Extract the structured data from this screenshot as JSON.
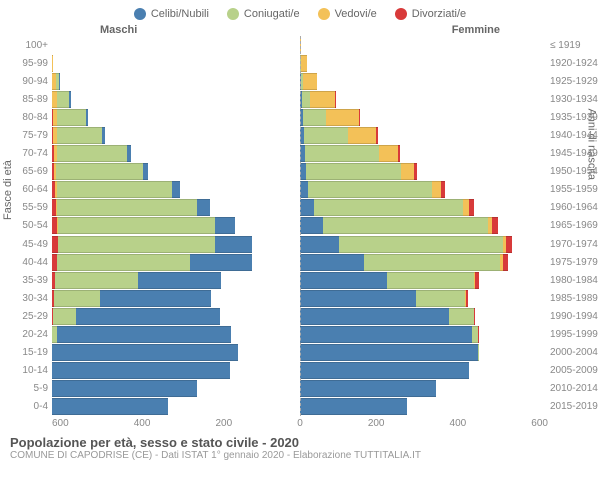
{
  "legend": [
    {
      "label": "Celibi/Nubili",
      "color": "#4a7fb0"
    },
    {
      "label": "Coniugati/e",
      "color": "#b8d18a"
    },
    {
      "label": "Vedovi/e",
      "color": "#f3c158"
    },
    {
      "label": "Divorziati/e",
      "color": "#d83a3a"
    }
  ],
  "header_left": "Maschi",
  "header_right": "Femmine",
  "y_label_left": "Fasce di età",
  "y_label_right": "Anni di nascita",
  "x_ticks": [
    "600",
    "400",
    "200",
    "0",
    "200",
    "400",
    "600"
  ],
  "x_max": 600,
  "footer_title": "Popolazione per età, sesso e stato civile - 2020",
  "footer_sub": "COMUNE DI CAPODRISE (CE) - Dati ISTAT 1° gennaio 2020 - Elaborazione TUTTITALIA.IT",
  "colors": {
    "celibi": "#4a7fb0",
    "coniugati": "#b8d18a",
    "vedovi": "#f3c158",
    "divorziati": "#d83a3a"
  },
  "rows": [
    {
      "age": "100+",
      "birth": "≤ 1919",
      "m": [
        0,
        0,
        0,
        0
      ],
      "f": [
        0,
        0,
        2,
        0
      ]
    },
    {
      "age": "95-99",
      "birth": "1920-1924",
      "m": [
        0,
        0,
        3,
        0
      ],
      "f": [
        0,
        2,
        15,
        0
      ]
    },
    {
      "age": "90-94",
      "birth": "1925-1929",
      "m": [
        2,
        8,
        10,
        0
      ],
      "f": [
        2,
        5,
        35,
        0
      ]
    },
    {
      "age": "85-89",
      "birth": "1930-1934",
      "m": [
        3,
        30,
        12,
        0
      ],
      "f": [
        5,
        20,
        60,
        2
      ]
    },
    {
      "age": "80-84",
      "birth": "1935-1939",
      "m": [
        5,
        70,
        10,
        2
      ],
      "f": [
        8,
        55,
        80,
        3
      ]
    },
    {
      "age": "75-79",
      "birth": "1940-1944",
      "m": [
        8,
        110,
        8,
        3
      ],
      "f": [
        10,
        105,
        70,
        4
      ]
    },
    {
      "age": "70-74",
      "birth": "1945-1949",
      "m": [
        10,
        170,
        6,
        5
      ],
      "f": [
        12,
        180,
        45,
        6
      ]
    },
    {
      "age": "65-69",
      "birth": "1950-1954",
      "m": [
        12,
        210,
        4,
        6
      ],
      "f": [
        15,
        230,
        30,
        8
      ]
    },
    {
      "age": "60-64",
      "birth": "1955-1959",
      "m": [
        18,
        280,
        3,
        8
      ],
      "f": [
        20,
        300,
        20,
        10
      ]
    },
    {
      "age": "55-59",
      "birth": "1960-1964",
      "m": [
        30,
        340,
        2,
        10
      ],
      "f": [
        35,
        360,
        15,
        12
      ]
    },
    {
      "age": "50-54",
      "birth": "1965-1969",
      "m": [
        50,
        380,
        2,
        12
      ],
      "f": [
        55,
        400,
        10,
        15
      ]
    },
    {
      "age": "45-49",
      "birth": "1970-1974",
      "m": [
        90,
        380,
        1,
        14
      ],
      "f": [
        95,
        395,
        8,
        16
      ]
    },
    {
      "age": "40-44",
      "birth": "1975-1979",
      "m": [
        150,
        320,
        1,
        12
      ],
      "f": [
        155,
        330,
        5,
        14
      ]
    },
    {
      "age": "35-39",
      "birth": "1980-1984",
      "m": [
        200,
        200,
        0,
        8
      ],
      "f": [
        210,
        210,
        3,
        10
      ]
    },
    {
      "age": "30-34",
      "birth": "1985-1989",
      "m": [
        270,
        110,
        0,
        5
      ],
      "f": [
        280,
        120,
        1,
        6
      ]
    },
    {
      "age": "25-29",
      "birth": "1990-1994",
      "m": [
        350,
        55,
        0,
        2
      ],
      "f": [
        360,
        60,
        0,
        3
      ]
    },
    {
      "age": "20-24",
      "birth": "1995-1999",
      "m": [
        420,
        12,
        0,
        0
      ],
      "f": [
        415,
        15,
        0,
        1
      ]
    },
    {
      "age": "15-19",
      "birth": "2000-2004",
      "m": [
        450,
        0,
        0,
        0
      ],
      "f": [
        430,
        2,
        0,
        0
      ]
    },
    {
      "age": "10-14",
      "birth": "2005-2009",
      "m": [
        430,
        0,
        0,
        0
      ],
      "f": [
        410,
        0,
        0,
        0
      ]
    },
    {
      "age": "5-9",
      "birth": "2010-2014",
      "m": [
        350,
        0,
        0,
        0
      ],
      "f": [
        330,
        0,
        0,
        0
      ]
    },
    {
      "age": "0-4",
      "birth": "2015-2019",
      "m": [
        280,
        0,
        0,
        0
      ],
      "f": [
        260,
        0,
        0,
        0
      ]
    }
  ]
}
